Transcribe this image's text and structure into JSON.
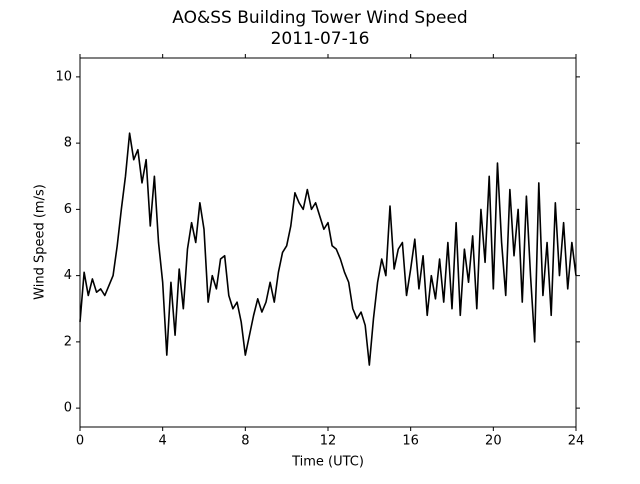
{
  "chart_data": {
    "type": "line",
    "title": "AO&SS Building Tower Wind Speed",
    "subtitle": "2011-07-16",
    "x_label": "Time (UTC)",
    "y_label": "Wind Speed (m/s)",
    "x": [
      0,
      0.2,
      0.4,
      0.6,
      0.8,
      1,
      1.2,
      1.4,
      1.6,
      1.8,
      2,
      2.2,
      2.4,
      2.6,
      2.8,
      3,
      3.2,
      3.4,
      3.6,
      3.8,
      4,
      4.2,
      4.4,
      4.6,
      4.8,
      5,
      5.2,
      5.4,
      5.6,
      5.8,
      6,
      6.2,
      6.4,
      6.6,
      6.8,
      7,
      7.2,
      7.4,
      7.6,
      7.8,
      8,
      8.2,
      8.4,
      8.6,
      8.8,
      9,
      9.2,
      9.4,
      9.6,
      9.8,
      10,
      10.2,
      10.4,
      10.6,
      10.8,
      11,
      11.2,
      11.4,
      11.6,
      11.8,
      12,
      12.2,
      12.4,
      12.6,
      12.8,
      13,
      13.2,
      13.4,
      13.6,
      13.8,
      14,
      14.2,
      14.4,
      14.6,
      14.8,
      15,
      15.2,
      15.4,
      15.6,
      15.8,
      16,
      16.2,
      16.4,
      16.6,
      16.8,
      17,
      17.2,
      17.4,
      17.6,
      17.8,
      18,
      18.2,
      18.4,
      18.6,
      18.8,
      19,
      19.2,
      19.4,
      19.6,
      19.8,
      20,
      20.2,
      20.4,
      20.6,
      20.8,
      21,
      21.2,
      21.4,
      21.6,
      21.8,
      22,
      22.2,
      22.4,
      22.6,
      22.8,
      23,
      23.2,
      23.4,
      23.6,
      23.8,
      24
    ],
    "values": [
      2.6,
      4.1,
      3.4,
      3.9,
      3.5,
      3.6,
      3.4,
      3.7,
      4.0,
      4.9,
      6.0,
      7.0,
      8.3,
      7.5,
      7.8,
      6.8,
      7.5,
      5.5,
      7.0,
      5.0,
      3.8,
      1.6,
      3.8,
      2.2,
      4.2,
      3.0,
      4.8,
      5.6,
      5.0,
      6.2,
      5.4,
      3.2,
      4.0,
      3.6,
      4.5,
      4.6,
      3.4,
      3.0,
      3.2,
      2.6,
      1.6,
      2.2,
      2.8,
      3.3,
      2.9,
      3.2,
      3.8,
      3.2,
      4.1,
      4.7,
      4.9,
      5.5,
      6.5,
      6.2,
      6.0,
      6.6,
      6.0,
      6.2,
      5.8,
      5.4,
      5.6,
      4.9,
      4.8,
      4.5,
      4.1,
      3.8,
      3.0,
      2.7,
      2.9,
      2.5,
      1.3,
      2.7,
      3.8,
      4.5,
      4.0,
      6.1,
      4.2,
      4.8,
      5.0,
      3.4,
      4.2,
      5.1,
      3.6,
      4.6,
      2.8,
      4.0,
      3.3,
      4.5,
      3.2,
      5.0,
      3.0,
      5.6,
      2.8,
      4.8,
      3.8,
      5.2,
      3.0,
      6.0,
      4.4,
      7.0,
      3.6,
      7.4,
      5.0,
      3.4,
      6.6,
      4.6,
      6.0,
      3.2,
      6.4,
      4.0,
      2.0,
      6.8,
      3.4,
      5.0,
      2.8,
      6.2,
      4.0,
      5.6,
      3.6,
      5.0,
      4.0
    ],
    "color": "#000000",
    "xlim": [
      0,
      24
    ],
    "xticks": [
      0,
      4,
      8,
      12,
      16,
      20,
      24
    ],
    "ylim": [
      -0.57,
      10.57
    ],
    "yticks": [
      0,
      2,
      4,
      6,
      8,
      10
    ]
  }
}
